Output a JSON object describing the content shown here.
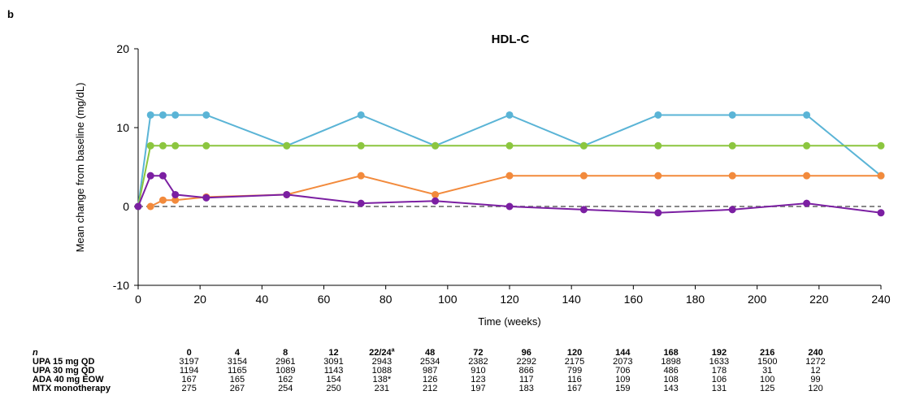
{
  "panel_label": "b",
  "chart_data": {
    "type": "line",
    "title": "HDL-C",
    "xlabel": "Time (weeks)",
    "ylabel": "Mean change from baseline (mg/dL)",
    "xlim": [
      0,
      240
    ],
    "ylim": [
      -10,
      20
    ],
    "xticks": [
      0,
      20,
      40,
      60,
      80,
      100,
      120,
      140,
      160,
      180,
      200,
      220,
      240
    ],
    "yticks": [
      -10,
      0,
      10,
      20
    ],
    "grid": false,
    "reference_line": {
      "y": 0,
      "style": "dashed",
      "color": "#888888"
    },
    "series": [
      {
        "color": "#5ab4d6",
        "x": [
          0,
          4,
          8,
          12,
          22,
          48,
          72,
          96,
          120,
          144,
          168,
          192,
          216,
          240
        ],
        "y": [
          0,
          11.6,
          11.6,
          11.6,
          11.6,
          7.7,
          11.6,
          7.7,
          11.6,
          7.7,
          11.6,
          11.6,
          11.6,
          3.9
        ]
      },
      {
        "color": "#8cc63f",
        "x": [
          0,
          4,
          8,
          12,
          22,
          48,
          72,
          96,
          120,
          144,
          168,
          192,
          216,
          240
        ],
        "y": [
          0,
          7.7,
          7.7,
          7.7,
          7.7,
          7.7,
          7.7,
          7.7,
          7.7,
          7.7,
          7.7,
          7.7,
          7.7,
          7.7
        ]
      },
      {
        "color": "#f28a3c",
        "x": [
          4,
          8,
          12,
          22,
          48,
          72,
          96,
          120,
          144,
          168,
          192,
          216,
          240
        ],
        "y": [
          0,
          0.8,
          0.8,
          1.2,
          1.5,
          3.9,
          1.5,
          3.9,
          3.9,
          3.9,
          3.9,
          3.9,
          3.9
        ]
      },
      {
        "color": "#7b1fa2",
        "x": [
          0,
          4,
          8,
          12,
          22,
          48,
          72,
          96,
          120,
          144,
          168,
          192,
          216,
          240
        ],
        "y": [
          0,
          3.9,
          3.9,
          1.5,
          1.1,
          1.5,
          0.4,
          0.7,
          0,
          -0.4,
          -0.8,
          -0.4,
          0.4,
          -0.8
        ]
      }
    ]
  },
  "n_table": {
    "header_label": "n",
    "columns": [
      "0",
      "4",
      "8",
      "12",
      "22/24",
      "48",
      "72",
      "96",
      "120",
      "144",
      "168",
      "192",
      "216",
      "240"
    ],
    "column_superscripts": {
      "22/24": "a"
    },
    "rows": [
      {
        "label": "UPA 15 mg QD",
        "values": [
          "3197",
          "3154",
          "2961",
          "3091",
          "2943",
          "2534",
          "2382",
          "2292",
          "2175",
          "2073",
          "1898",
          "1633",
          "1500",
          "1272"
        ]
      },
      {
        "label": "UPA 30 mg QD",
        "values": [
          "1194",
          "1165",
          "1089",
          "1143",
          "1088",
          "987",
          "910",
          "866",
          "799",
          "706",
          "486",
          "178",
          "31",
          "12"
        ]
      },
      {
        "label": "ADA 40 mg EOW",
        "values": [
          "167",
          "165",
          "162",
          "154",
          "138*",
          "126",
          "123",
          "117",
          "116",
          "109",
          "108",
          "106",
          "100",
          "99"
        ]
      },
      {
        "label": "MTX monotherapy",
        "values": [
          "275",
          "267",
          "254",
          "250",
          "231",
          "212",
          "197",
          "183",
          "167",
          "159",
          "143",
          "131",
          "125",
          "120"
        ]
      }
    ]
  }
}
